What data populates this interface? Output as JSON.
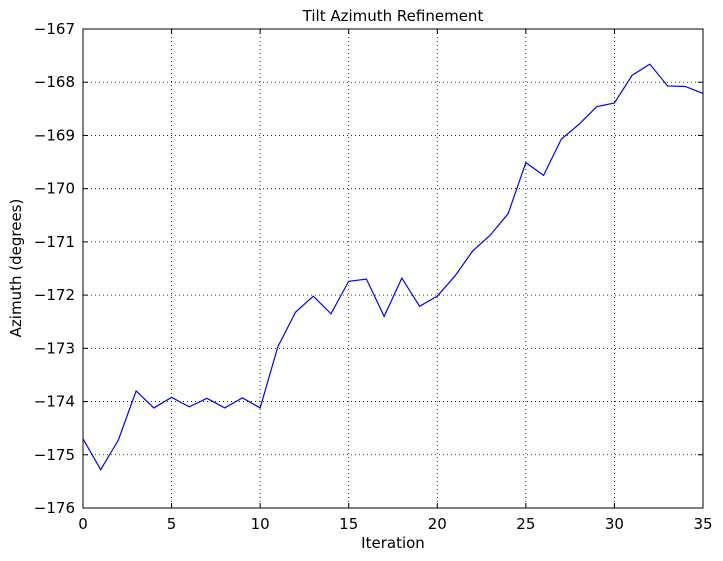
{
  "chart_data": {
    "type": "line",
    "title": "Tilt Azimuth Refinement",
    "xlabel": "Iteration",
    "ylabel": "Azimuth (degrees)",
    "xlim": [
      0,
      35
    ],
    "ylim": [
      -176,
      -167
    ],
    "xticks": [
      0,
      5,
      10,
      15,
      20,
      25,
      30,
      35
    ],
    "yticks": [
      -176,
      -175,
      -174,
      -173,
      -172,
      -171,
      -170,
      -169,
      -168,
      -167
    ],
    "xtick_labels": [
      "0",
      "5",
      "10",
      "15",
      "20",
      "25",
      "30",
      "35"
    ],
    "ytick_labels": [
      "−176",
      "−175",
      "−174",
      "−173",
      "−172",
      "−171",
      "−170",
      "−169",
      "−168",
      "−167"
    ],
    "grid": true,
    "grid_style": "dotted",
    "line_color": "#0000ff",
    "series": [
      {
        "x": [
          0,
          1,
          2,
          3,
          4,
          5,
          6,
          7,
          8,
          9,
          10,
          11,
          12,
          13,
          14,
          15,
          16,
          17,
          18,
          19,
          20,
          21,
          22,
          23,
          24,
          25,
          26,
          27,
          28,
          29,
          30,
          31,
          32,
          33,
          34,
          35
        ],
        "y": [
          -174.7,
          -175.28,
          -174.72,
          -173.8,
          -174.12,
          -173.92,
          -174.1,
          -173.94,
          -174.12,
          -173.93,
          -174.12,
          -172.97,
          -172.32,
          -172.02,
          -172.35,
          -171.74,
          -171.7,
          -172.4,
          -171.68,
          -172.21,
          -172.02,
          -171.64,
          -171.17,
          -170.87,
          -170.47,
          -169.51,
          -169.75,
          -169.07,
          -168.79,
          -168.46,
          -168.39,
          -167.87,
          -167.66,
          -168.07,
          -168.08,
          -168.21
        ]
      }
    ]
  }
}
